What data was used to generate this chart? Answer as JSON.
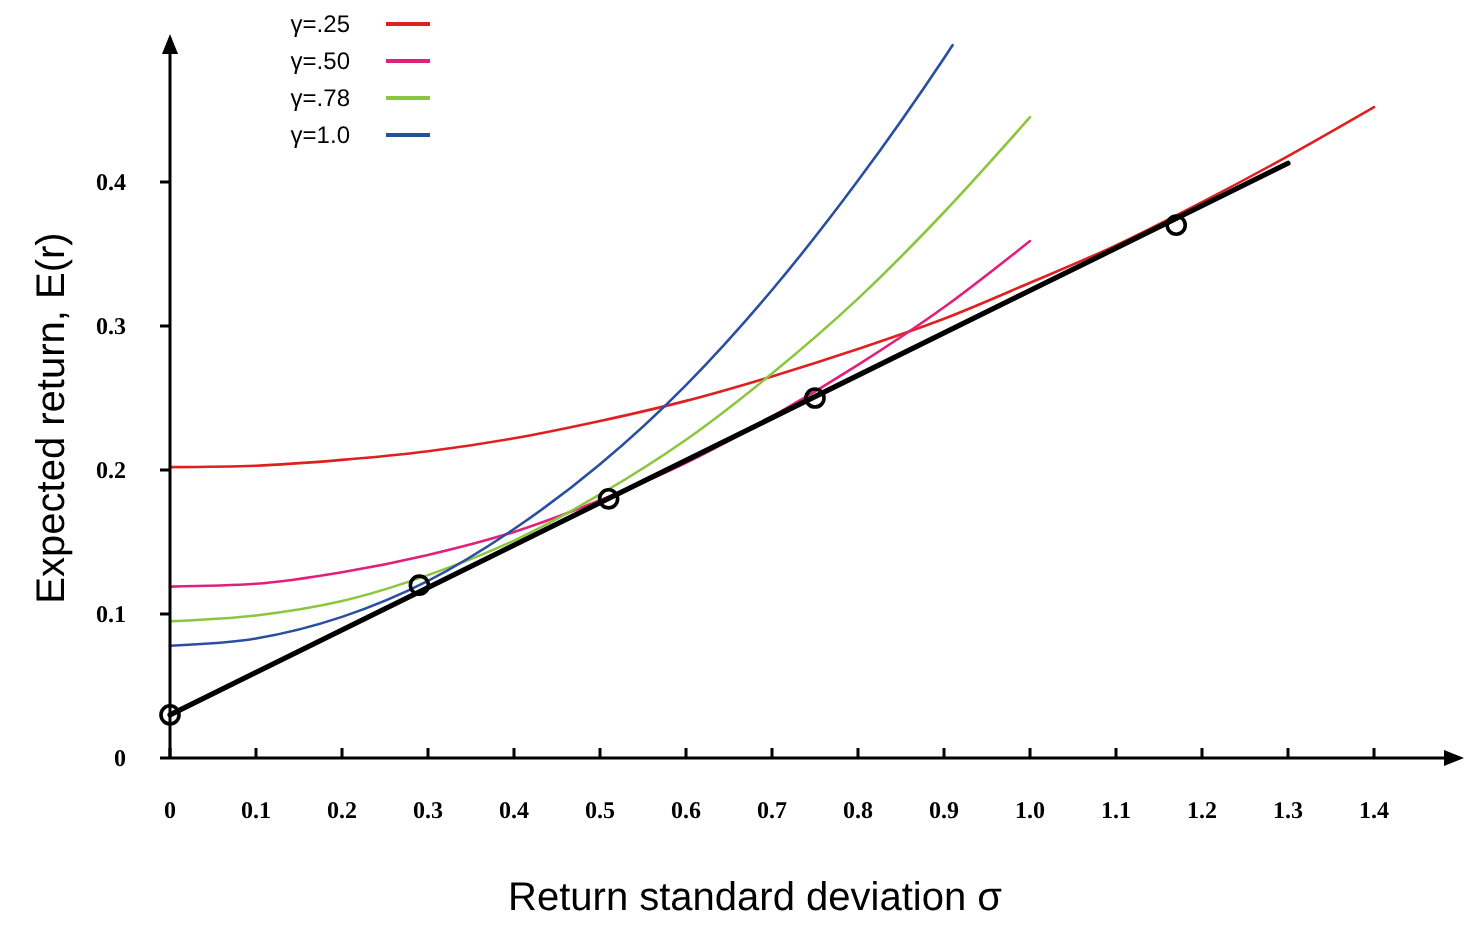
{
  "chart_data": {
    "type": "line",
    "xlabel": "Return standard deviation σ",
    "ylabel": "Expected return, E(r)",
    "xlim": [
      0,
      1.5
    ],
    "ylim": [
      0,
      0.5
    ],
    "xticks": [
      0,
      0.1,
      0.2,
      0.3,
      0.4,
      0.5,
      0.6,
      0.7,
      0.8,
      0.9,
      {
        "value": 1,
        "label": "1.0"
      },
      1.1,
      1.2,
      1.3,
      1.4
    ],
    "yticks": [
      0,
      0.1,
      0.2,
      0.3,
      0.4
    ],
    "grid": false,
    "legend": "top left",
    "marker": "none",
    "line_style": "solid",
    "series": [
      {
        "name": "γ=.25",
        "color": "#e02020",
        "x": [
          0,
          0.1,
          0.2,
          0.3,
          0.4,
          0.5,
          0.6,
          0.7,
          0.8,
          0.9,
          1.0,
          1.1,
          1.2,
          1.3,
          1.4
        ],
        "values": [
          0.202,
          0.203,
          0.207,
          0.213,
          0.222,
          0.234,
          0.248,
          0.265,
          0.284,
          0.305,
          0.33,
          0.356,
          0.386,
          0.418,
          0.452
        ]
      },
      {
        "name": "γ=.50",
        "color": "#e0207a",
        "x": [
          0,
          0.1,
          0.2,
          0.3,
          0.4,
          0.5,
          0.6,
          0.7,
          0.8,
          0.9,
          1.0
        ],
        "values": [
          0.119,
          0.121,
          0.129,
          0.141,
          0.157,
          0.179,
          0.205,
          0.237,
          0.273,
          0.313,
          0.359
        ]
      },
      {
        "name": "γ=.78",
        "color": "#8cc63f",
        "x": [
          0,
          0.1,
          0.2,
          0.3,
          0.4,
          0.5,
          0.6,
          0.7,
          0.8,
          0.9,
          1.0
        ],
        "values": [
          0.095,
          0.099,
          0.109,
          0.127,
          0.151,
          0.183,
          0.221,
          0.267,
          0.319,
          0.379,
          0.445
        ]
      },
      {
        "name": "γ=1.0",
        "color": "#2a4fa0",
        "x": [
          0,
          0.1,
          0.2,
          0.3,
          0.4,
          0.5,
          0.6,
          0.7,
          0.8,
          0.9,
          0.91
        ],
        "values": [
          0.078,
          0.083,
          0.098,
          0.123,
          0.159,
          0.204,
          0.259,
          0.325,
          0.401,
          0.486,
          0.495
        ]
      },
      {
        "type": "line",
        "color": "#000000",
        "x": [
          0,
          1.3
        ],
        "values": [
          0.03,
          0.413
        ]
      },
      {
        "type": "scatter",
        "color": "#000000",
        "marker": "circle",
        "x": [
          0,
          0.29,
          0.51,
          0.75,
          1.17
        ],
        "values": [
          0.03,
          0.12,
          0.18,
          0.25,
          0.37
        ]
      }
    ]
  }
}
